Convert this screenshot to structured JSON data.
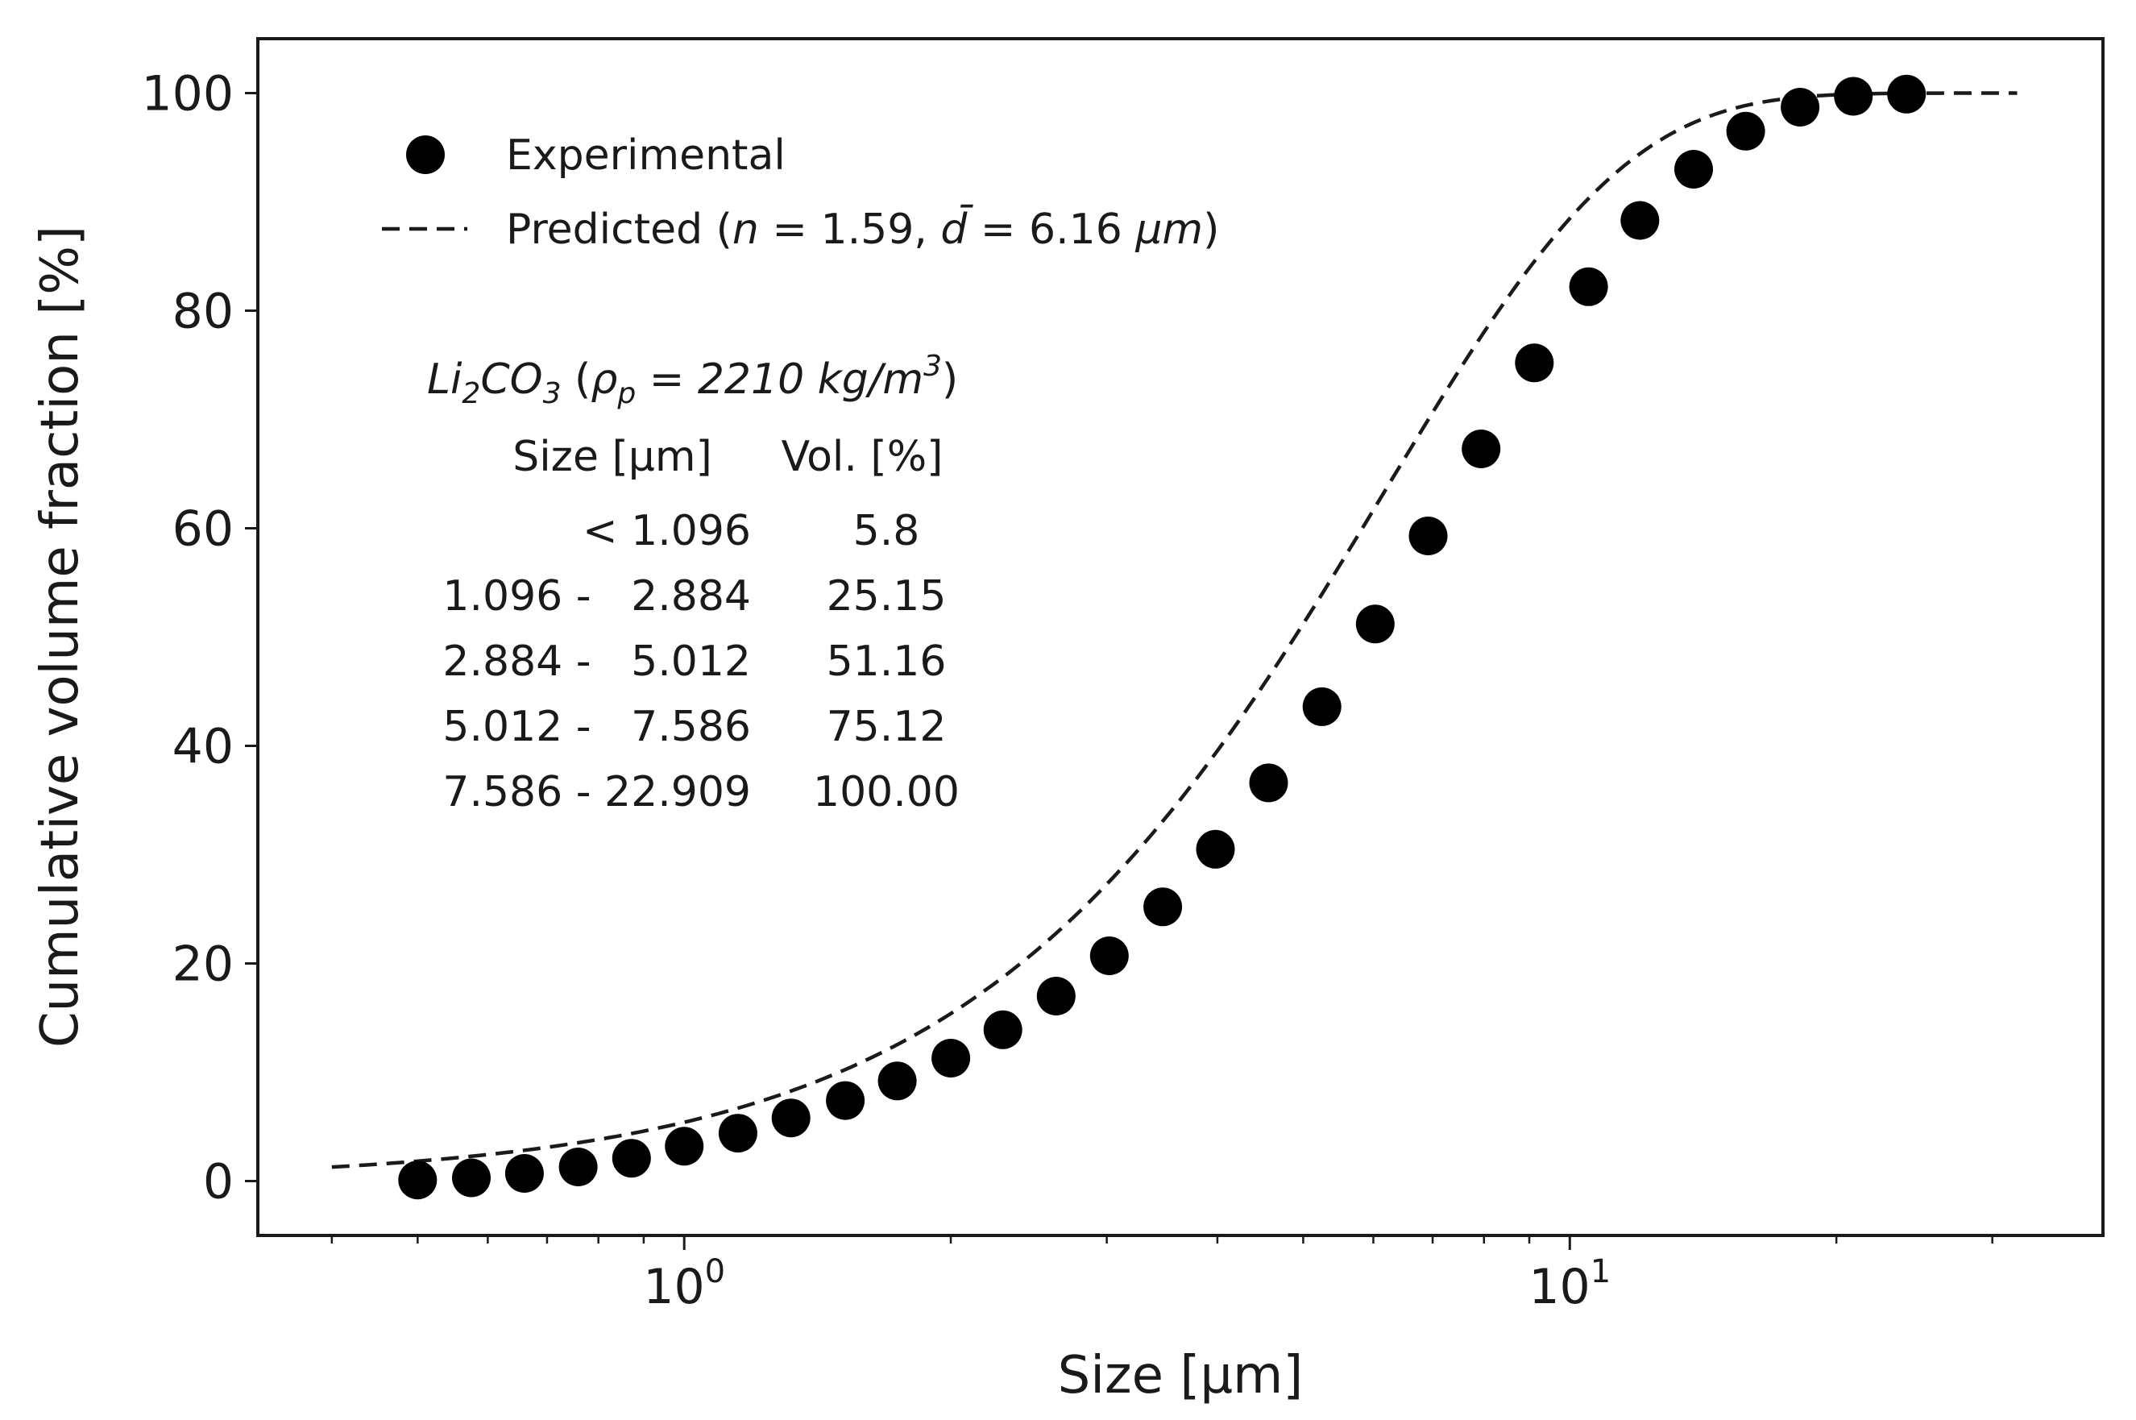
{
  "chart_data": {
    "type": "scatter",
    "title": "",
    "xlabel": "Size [μm]",
    "ylabel": "Cumulative volume fraction [%]",
    "xscale": "log",
    "xlim": [
      0.33,
      40
    ],
    "ylim": [
      -5,
      105
    ],
    "yticks": [
      0,
      20,
      40,
      60,
      80,
      100
    ],
    "xticks": [
      {
        "value": 1,
        "base": "10",
        "exp": "0"
      },
      {
        "value": 10,
        "base": "10",
        "exp": "1"
      }
    ],
    "legend": {
      "position": "top-left",
      "experimental": "Experimental",
      "predicted_prefix": "Predicted (",
      "predicted_n_symbol": "n",
      "predicted_n_value": " = 1.59, ",
      "predicted_d_symbol": "d̄",
      "predicted_d_value": " = 6.16 ",
      "predicted_unit": "μm",
      "predicted_suffix": ")"
    },
    "series": [
      {
        "name": "Experimental",
        "style": "markers",
        "x": [
          0.5,
          0.575,
          0.66,
          0.759,
          0.872,
          1.0,
          1.15,
          1.32,
          1.52,
          1.74,
          2.0,
          2.29,
          2.63,
          3.02,
          3.47,
          3.98,
          4.57,
          5.25,
          6.03,
          6.92,
          7.94,
          9.12,
          10.5,
          12.0,
          13.8,
          15.8,
          18.2,
          20.9,
          24.0
        ],
        "y": [
          0.1,
          0.3,
          0.7,
          1.3,
          2.1,
          3.2,
          4.4,
          5.8,
          7.4,
          9.2,
          11.3,
          13.9,
          17.0,
          20.7,
          25.2,
          30.5,
          36.6,
          43.6,
          51.2,
          59.3,
          67.3,
          75.2,
          82.2,
          88.3,
          93.0,
          96.5,
          98.7,
          99.7,
          99.9
        ]
      },
      {
        "name": "Predicted",
        "style": "dashed-line",
        "n": 1.59,
        "d_bar": 6.16,
        "x_range": [
          0.4,
          32
        ]
      }
    ],
    "annotation": {
      "material_main": "Li",
      "material_sub1": "2",
      "material_mid": "CO",
      "material_sub2": "3",
      "density_open": " (",
      "density_symbol": "ρ",
      "density_sub": "p",
      "density_eq": " = 2210 kg/m",
      "density_sup": "3",
      "density_close": ")",
      "columns": [
        "Size [μm]",
        "Vol. [%]"
      ],
      "rows": [
        {
          "range": "< 1.096",
          "vol": "5.8"
        },
        {
          "range": "1.096 -   2.884",
          "vol": "25.15"
        },
        {
          "range": "2.884 -   5.012",
          "vol": "51.16"
        },
        {
          "range": "5.012 -   7.586",
          "vol": "75.12"
        },
        {
          "range": "7.586 - 22.909",
          "vol": "100.00"
        }
      ]
    }
  }
}
